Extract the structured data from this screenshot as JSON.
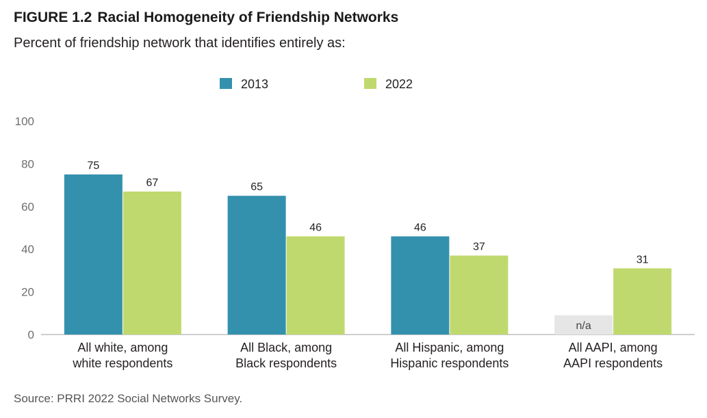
{
  "figure": {
    "number": "FIGURE 1.2",
    "title": "Racial Homogeneity of Friendship Networks",
    "subtitle": "Percent of friendship network that identifies entirely as:",
    "source": "Source: PRRI 2022 Social Networks Survey."
  },
  "chart_data": {
    "type": "bar",
    "categories": [
      [
        "All white, among",
        "white respondents"
      ],
      [
        "All Black, among",
        "Black respondents"
      ],
      [
        "All Hispanic, among",
        "Hispanic respondents"
      ],
      [
        "All AAPI, among",
        "AAPI respondents"
      ]
    ],
    "series": [
      {
        "name": "2013",
        "color": "#3491ad",
        "values": [
          75,
          65,
          46,
          null
        ],
        "labels": [
          "75",
          "65",
          "46",
          "n/a"
        ]
      },
      {
        "name": "2022",
        "color": "#c0d96e",
        "values": [
          67,
          46,
          37,
          31
        ],
        "labels": [
          "67",
          "46",
          "37",
          "31"
        ]
      }
    ],
    "na_color": "#e6e6e6",
    "yticks": [
      "0",
      "20",
      "40",
      "60",
      "80",
      "100"
    ],
    "ylim": [
      0,
      100
    ],
    "grid": false,
    "legend_position": "top-center"
  }
}
